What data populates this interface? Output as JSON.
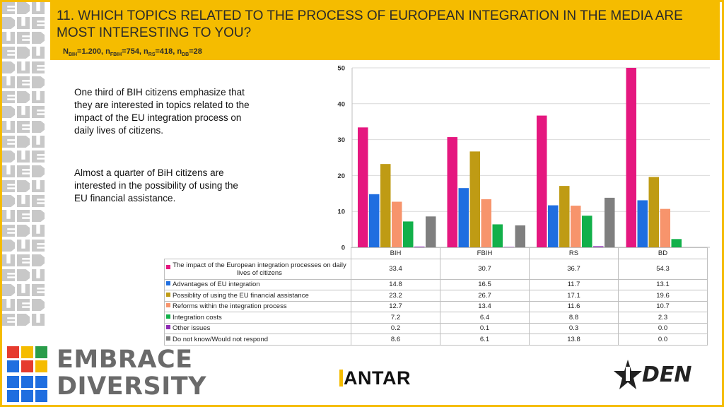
{
  "header": {
    "title": "11. WHICH TOPICS RELATED TO THE PROCESS OF EUROPEAN INTEGRATION IN THE MEDIA ARE MOST INTERESTING TO YOU?",
    "sample_n_label": "N",
    "sample_bih_sub": "BIH",
    "sample_bih_val": "=1.200, n",
    "sample_fbih_sub": "FBIH",
    "sample_fbih_val": "=754, n",
    "sample_rs_sub": "RS",
    "sample_rs_val": "=418, n",
    "sample_db_sub": "DB",
    "sample_db_val": "=28"
  },
  "commentary": {
    "paragraph1": "One third of BIH citizens emphasize that they are interested in topics related to the impact of the EU integration process on daily lives of citizens.",
    "paragraph2": "Almost a quarter of BiH citizens are interested in the possibility of using the EU financial assistance."
  },
  "chart_data": {
    "type": "bar",
    "categories": [
      "BIH",
      "FBIH",
      "RS",
      "BD"
    ],
    "ylim": [
      0,
      50
    ],
    "yticks": [
      0,
      10,
      20,
      30,
      40,
      50
    ],
    "grid": true,
    "series": [
      {
        "name": "The impact of the European integration processes on daily lives of citizens",
        "color": "#e5177f",
        "values": [
          33.4,
          30.7,
          36.7,
          54.3
        ],
        "display": [
          "33.4",
          "30.7",
          "36.7",
          "54.3"
        ]
      },
      {
        "name": "Advantages of EU integration",
        "color": "#1f6ee0",
        "values": [
          14.8,
          16.5,
          11.7,
          13.1
        ],
        "display": [
          "14.8",
          "16.5",
          "11.7",
          "13.1"
        ]
      },
      {
        "name": "Possiblity of using the EU financial assistance",
        "color": "#bf9b14",
        "values": [
          23.2,
          26.7,
          17.1,
          19.6
        ],
        "display": [
          "23.2",
          "26.7",
          "17.1",
          "19.6"
        ]
      },
      {
        "name": "Reforms within the integration process",
        "color": "#f7946c",
        "values": [
          12.7,
          13.4,
          11.6,
          10.7
        ],
        "display": [
          "12.7",
          "13.4",
          "11.6",
          "10.7"
        ]
      },
      {
        "name": "Integration costs",
        "color": "#12b04a",
        "values": [
          7.2,
          6.4,
          8.8,
          2.3
        ],
        "display": [
          "7.2",
          "6.4",
          "8.8",
          "2.3"
        ]
      },
      {
        "name": "Other issues",
        "color": "#8e2bb5",
        "values": [
          0.2,
          0.1,
          0.3,
          0.0
        ],
        "display": [
          "0.2",
          "0.1",
          "0.3",
          "0.0"
        ]
      },
      {
        "name": "Do not know/Would not respond",
        "color": "#7f7f7f",
        "values": [
          8.6,
          6.1,
          13.8,
          0.0
        ],
        "display": [
          "8.6",
          "6.1",
          "13.8",
          "0.0"
        ]
      }
    ]
  },
  "logos": {
    "brand_line1": "EMBRACE",
    "brand_line2": "DIVERSITY",
    "kantar": "ANTAR",
    "kantar_initial": "K",
    "iden": "DEN",
    "brand_colors": [
      "#e63b2e",
      "#f5bc00",
      "#2a9d4a",
      "#1f6ee0"
    ]
  }
}
